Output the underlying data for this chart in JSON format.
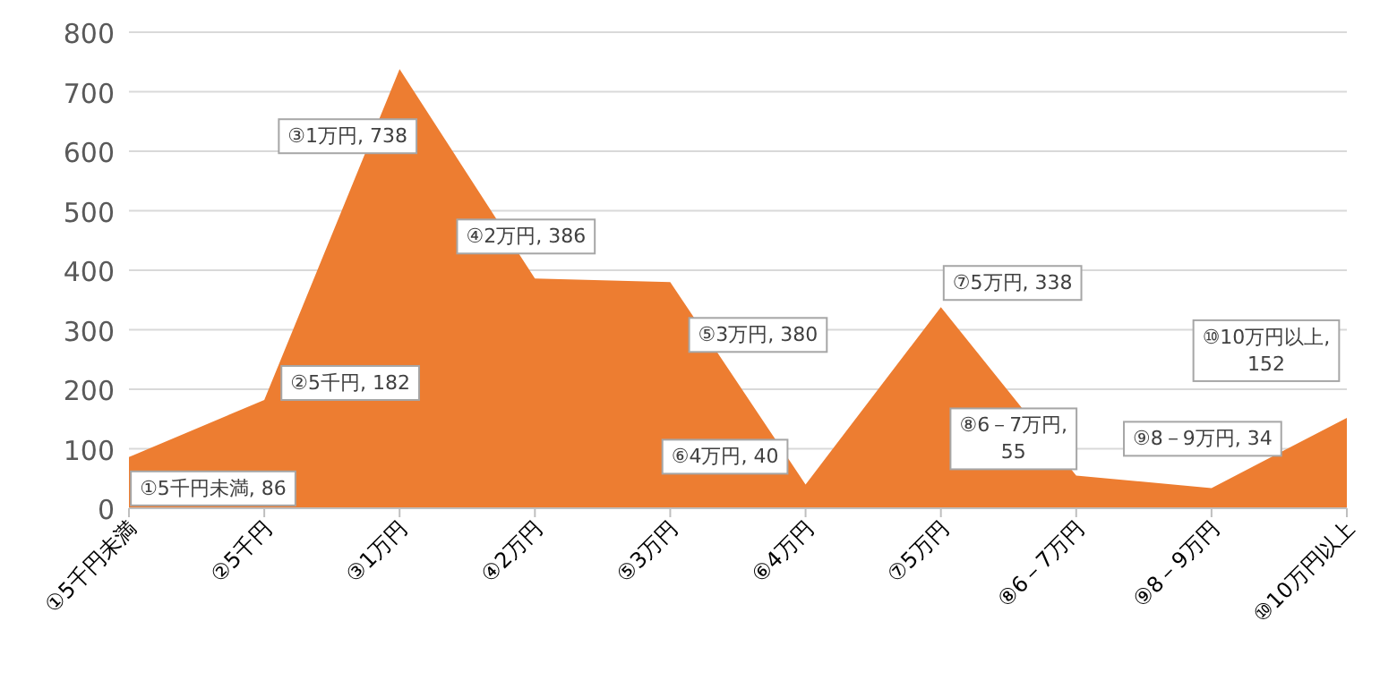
{
  "chart_data": {
    "type": "area",
    "categories": [
      "①5千円未満",
      "②5千円",
      "③1万円",
      "④2万円",
      "⑤3万円",
      "⑥4万円",
      "⑦5万円",
      "⑧6－7万円",
      "⑨8－9万円",
      "⑩10万円以上"
    ],
    "values": [
      86,
      182,
      738,
      386,
      380,
      40,
      338,
      55,
      34,
      152
    ],
    "value_labels": [
      "①5千円未満, 86",
      "②5千円, 182",
      "③1万円, 738",
      "④2万円, 386",
      "⑤3万円, 380",
      "⑥4万円, 40",
      "⑦5万円, 338",
      "⑧6－7万円, 55",
      "⑨8－9万円, 34",
      "⑩10万円以上, 152"
    ],
    "color": "#ed7d31",
    "ylim": [
      0,
      800
    ],
    "yticks": [
      0,
      100,
      200,
      300,
      400,
      500,
      600,
      700,
      800
    ],
    "grid": "y"
  }
}
